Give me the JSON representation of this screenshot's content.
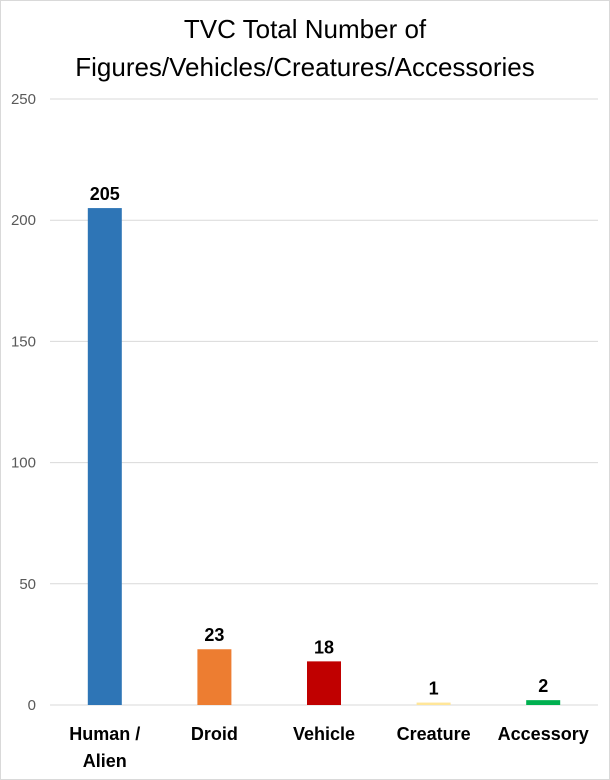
{
  "chart_data": {
    "type": "bar",
    "title_lines": [
      "TVC Total Number of",
      "Figures/Vehicles/Creatures/Accessories"
    ],
    "categories": [
      [
        "Human /",
        "Alien"
      ],
      [
        "Droid"
      ],
      [
        "Vehicle"
      ],
      [
        "Creature"
      ],
      [
        "Accessory"
      ]
    ],
    "values": [
      205,
      23,
      18,
      1,
      2
    ],
    "colors": [
      "#2e75b6",
      "#ed7d31",
      "#c00000",
      "#ffe699",
      "#00b050"
    ],
    "yticks": [
      0,
      50,
      100,
      150,
      200,
      250
    ],
    "ylim": [
      0,
      250
    ],
    "grid": true,
    "legend": "none"
  }
}
